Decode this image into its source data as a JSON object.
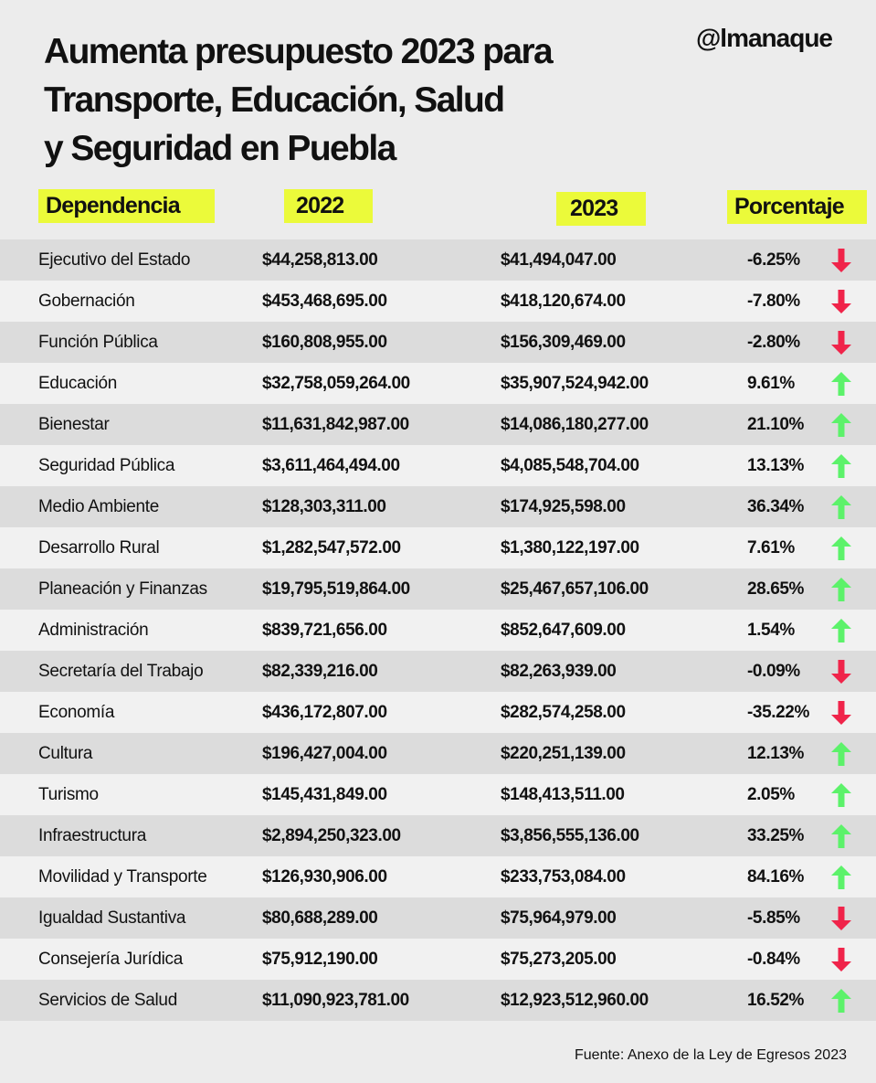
{
  "title": "Aumenta presupuesto 2023 para Transporte, Educación, Salud y Seguridad en Puebla",
  "title_lines": [
    "Aumenta presupuesto 2023 para",
    "Transporte, Educación, Salud",
    "y Seguridad en Puebla"
  ],
  "brand": "@lmanaque",
  "colors": {
    "highlight": "#ebfa3a",
    "down": "#f0244a",
    "up": "#5cf26a"
  },
  "source": "Fuente:  Anexo de la Ley de Egresos 2023",
  "chart_data": {
    "type": "table",
    "columns": [
      "Dependencia",
      "2022",
      "2023",
      "Porcentaje"
    ],
    "rows": [
      [
        "Ejecutivo del Estado",
        "$44,258,813.00",
        "$41,494,047.00",
        "-6.25%",
        "down"
      ],
      [
        "Gobernación",
        "$453,468,695.00",
        "$418,120,674.00",
        "-7.80%",
        "down"
      ],
      [
        "Función Pública",
        "$160,808,955.00",
        "$156,309,469.00",
        "-2.80%",
        "down"
      ],
      [
        "Educación",
        "$32,758,059,264.00",
        "$35,907,524,942.00",
        "9.61%",
        "up"
      ],
      [
        "Bienestar",
        "$11,631,842,987.00",
        "$14,086,180,277.00",
        "21.10%",
        "up"
      ],
      [
        "Seguridad Pública",
        "$3,611,464,494.00",
        "$4,085,548,704.00",
        "13.13%",
        "up"
      ],
      [
        "Medio Ambiente",
        "$128,303,311.00",
        "$174,925,598.00",
        "36.34%",
        "up"
      ],
      [
        "Desarrollo Rural",
        "$1,282,547,572.00",
        "$1,380,122,197.00",
        "7.61%",
        "up"
      ],
      [
        "Planeación y Finanzas",
        "$19,795,519,864.00",
        "$25,467,657,106.00",
        "28.65%",
        "up"
      ],
      [
        "Administración",
        "$839,721,656.00",
        "$852,647,609.00",
        "1.54%",
        "up"
      ],
      [
        "Secretaría del Trabajo",
        "$82,339,216.00",
        "$82,263,939.00",
        "-0.09%",
        "down"
      ],
      [
        "Economía",
        "$436,172,807.00",
        "$282,574,258.00",
        "-35.22%",
        "down"
      ],
      [
        "Cultura",
        "$196,427,004.00",
        "$220,251,139.00",
        "12.13%",
        "up"
      ],
      [
        "Turismo",
        "$145,431,849.00",
        "$148,413,511.00",
        "2.05%",
        "up"
      ],
      [
        "Infraestructura",
        "$2,894,250,323.00",
        "$3,856,555,136.00",
        "33.25%",
        "up"
      ],
      [
        "Movilidad y Transporte",
        "$126,930,906.00",
        "$233,753,084.00",
        "84.16%",
        "up"
      ],
      [
        "Igualdad Sustantiva",
        "$80,688,289.00",
        "$75,964,979.00",
        "-5.85%",
        "down"
      ],
      [
        "Consejería Jurídica",
        "$75,912,190.00",
        "$75,273,205.00",
        "-0.84%",
        "down"
      ],
      [
        "Servicios de Salud",
        "$11,090,923,781.00",
        "$12,923,512,960.00",
        "16.52%",
        "up"
      ]
    ]
  }
}
